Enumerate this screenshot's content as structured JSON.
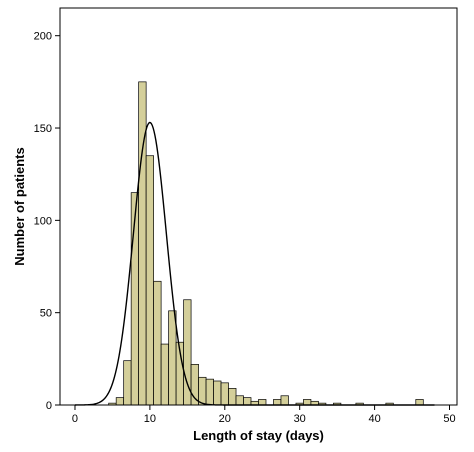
{
  "chart_data": {
    "type": "bar",
    "subtype": "histogram",
    "xlabel": "Length of stay (days)",
    "ylabel": "Number of patients",
    "xlim": [
      -2,
      51
    ],
    "ylim": [
      0,
      215
    ],
    "x_ticks": [
      "0",
      "10",
      "20",
      "30",
      "40",
      "50"
    ],
    "y_ticks": [
      "0",
      "50",
      "100",
      "150",
      "200"
    ],
    "bin_width": 1,
    "bins": [
      {
        "x": 5,
        "value": 1
      },
      {
        "x": 6,
        "value": 4
      },
      {
        "x": 7,
        "value": 24
      },
      {
        "x": 8,
        "value": 115
      },
      {
        "x": 9,
        "value": 175
      },
      {
        "x": 10,
        "value": 135
      },
      {
        "x": 11,
        "value": 67
      },
      {
        "x": 12,
        "value": 33
      },
      {
        "x": 13,
        "value": 51
      },
      {
        "x": 14,
        "value": 34
      },
      {
        "x": 15,
        "value": 57
      },
      {
        "x": 16,
        "value": 22
      },
      {
        "x": 17,
        "value": 15
      },
      {
        "x": 18,
        "value": 14
      },
      {
        "x": 19,
        "value": 13
      },
      {
        "x": 20,
        "value": 12
      },
      {
        "x": 21,
        "value": 9
      },
      {
        "x": 22,
        "value": 5
      },
      {
        "x": 23,
        "value": 4
      },
      {
        "x": 24,
        "value": 2
      },
      {
        "x": 25,
        "value": 3
      },
      {
        "x": 27,
        "value": 3
      },
      {
        "x": 28,
        "value": 5
      },
      {
        "x": 30,
        "value": 1
      },
      {
        "x": 31,
        "value": 3
      },
      {
        "x": 32,
        "value": 2
      },
      {
        "x": 33,
        "value": 1
      },
      {
        "x": 35,
        "value": 1
      },
      {
        "x": 38,
        "value": 1
      },
      {
        "x": 42,
        "value": 1
      },
      {
        "x": 46,
        "value": 3
      }
    ],
    "normal_curve": {
      "mean": 10,
      "sd": 2.2,
      "peak": 153
    },
    "grid": false,
    "bar_color": "#d4cf9a",
    "bar_edge_color": "#000000",
    "curve_color": "#000000"
  }
}
